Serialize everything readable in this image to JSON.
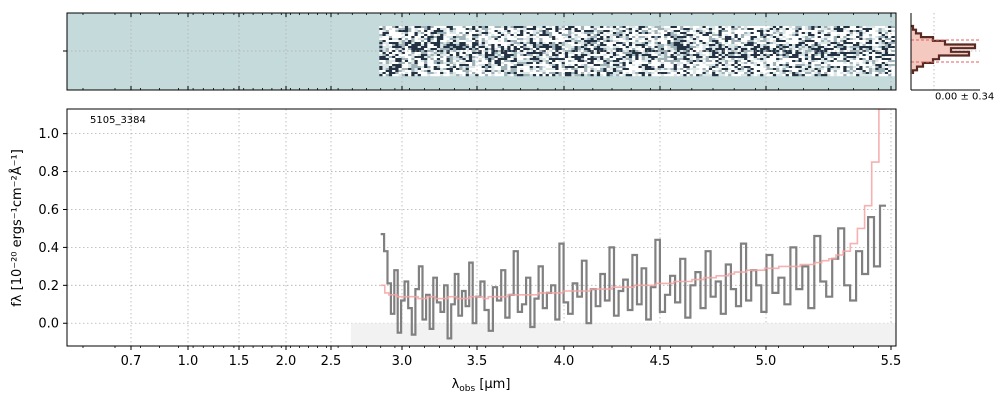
{
  "chart_data": [
    {
      "panel": "2d-spectrum",
      "type": "heatmap",
      "background_color": "#c5dadb",
      "data_xrange": [
        2.84,
        5.5
      ],
      "colormap": [
        "#ffffff",
        "#9fb3b8",
        "#233344"
      ]
    },
    {
      "panel": "profile-histogram",
      "type": "line",
      "annotation": "0.00 ± 0.34",
      "fill_color": "#f4c9c0",
      "line_color": "#5a2a22"
    },
    {
      "panel": "1d-spectrum",
      "type": "line",
      "label": "5105_3384",
      "xlabel_main": "λ",
      "xlabel_sub": "obs",
      "xlabel_unit": " [μm]",
      "ylabel": "fλ [10⁻²⁰ ergs⁻¹cm⁻²Å⁻¹]",
      "ylim": [
        -0.12,
        1.13
      ],
      "xlim": [
        0.5,
        5.52
      ],
      "x_scale": "warped (sqrt-like)",
      "x_ticks": [
        0.7,
        1.0,
        1.5,
        2.0,
        2.5,
        3.0,
        3.5,
        4.0,
        4.5,
        5.0,
        5.5
      ],
      "x_tick_labels": [
        "0.7",
        "1.0",
        "1.5",
        "2.0",
        "2.5",
        "3.0",
        "3.5",
        "4.0",
        "4.5",
        "5.0",
        "5.5"
      ],
      "y_ticks": [
        0.0,
        0.2,
        0.4,
        0.6,
        0.8,
        1.0
      ],
      "y_tick_labels": [
        "0.0",
        "0.2",
        "0.4",
        "0.6",
        "0.8",
        "1.0"
      ],
      "grid": true,
      "series": [
        {
          "style": "steps",
          "color": "#808080",
          "x_start": 2.85,
          "x_end": 5.48,
          "values": [
            0.47,
            0.38,
            0.21,
            0.05,
            0.28,
            -0.05,
            0.12,
            0.22,
            0.08,
            -0.06,
            0.18,
            0.3,
            0.02,
            0.15,
            -0.03,
            0.24,
            0.11,
            0.06,
            0.2,
            -0.08,
            0.1,
            0.26,
            0.04,
            0.17,
            0.09,
            0.32,
            0.0,
            0.14,
            0.22,
            0.07,
            -0.04,
            0.19,
            0.12,
            0.28,
            0.03,
            0.15,
            0.38,
            0.06,
            0.1,
            0.24,
            -0.02,
            0.13,
            0.3,
            0.08,
            0.16,
            0.2,
            0.02,
            0.42,
            0.11,
            0.05,
            0.21,
            0.14,
            0.33,
            0.0,
            0.18,
            0.09,
            0.26,
            0.12,
            0.4,
            0.04,
            0.17,
            0.23,
            0.07,
            0.36,
            0.1,
            0.29,
            0.02,
            0.19,
            0.44,
            0.06,
            0.15,
            0.25,
            0.11,
            0.34,
            0.03,
            0.2,
            0.27,
            0.08,
            0.38,
            0.14,
            0.22,
            0.05,
            0.31,
            0.18,
            0.09,
            0.42,
            0.12,
            0.28,
            0.2,
            0.06,
            0.36,
            0.16,
            0.24,
            0.1,
            0.4,
            0.18,
            0.3,
            0.08,
            0.46,
            0.22,
            0.14,
            0.34,
            0.5,
            0.2,
            0.12,
            0.38,
            0.26,
            0.56,
            0.3,
            0.62
          ]
        },
        {
          "style": "steps",
          "color": "#f4a3a3",
          "x_start": 2.85,
          "x_end": 5.48,
          "values": [
            0.2,
            0.16,
            0.15,
            0.15,
            0.14,
            0.14,
            0.14,
            0.14,
            0.14,
            0.13,
            0.13,
            0.14,
            0.14,
            0.13,
            0.13,
            0.13,
            0.14,
            0.14,
            0.13,
            0.13,
            0.13,
            0.14,
            0.14,
            0.14,
            0.13,
            0.14,
            0.14,
            0.14,
            0.14,
            0.15,
            0.15,
            0.15,
            0.15,
            0.15,
            0.15,
            0.16,
            0.16,
            0.16,
            0.16,
            0.16,
            0.17,
            0.17,
            0.17,
            0.17,
            0.17,
            0.18,
            0.18,
            0.18,
            0.18,
            0.19,
            0.19,
            0.19,
            0.19,
            0.2,
            0.2,
            0.2,
            0.2,
            0.21,
            0.21,
            0.21,
            0.22,
            0.22,
            0.22,
            0.23,
            0.23,
            0.24,
            0.24,
            0.25,
            0.25,
            0.26,
            0.27,
            0.27,
            0.28,
            0.28,
            0.28,
            0.29,
            0.29,
            0.3,
            0.3,
            0.3,
            0.31,
            0.31,
            0.32,
            0.33,
            0.34,
            0.36,
            0.38,
            0.42,
            0.5,
            0.62,
            0.85,
            1.13
          ]
        }
      ]
    }
  ]
}
